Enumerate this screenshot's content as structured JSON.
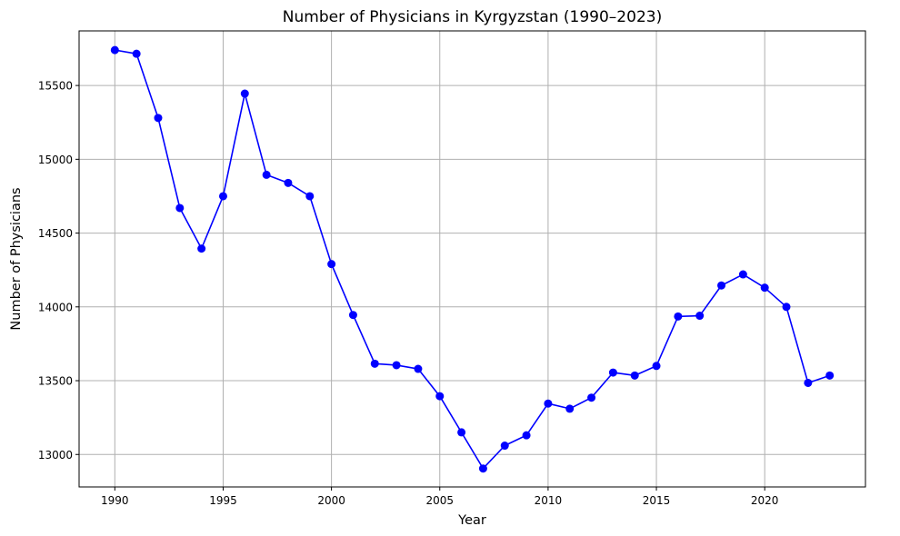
{
  "chart_data": {
    "type": "line",
    "title": "Number of Physicians in Kyrgyzstan (1990–2023)",
    "xlabel": "Year",
    "ylabel": "Number of Physicians",
    "x": [
      1990,
      1991,
      1992,
      1993,
      1994,
      1995,
      1996,
      1997,
      1998,
      1999,
      2000,
      2001,
      2002,
      2003,
      2004,
      2005,
      2006,
      2007,
      2008,
      2009,
      2010,
      2011,
      2012,
      2013,
      2014,
      2015,
      2016,
      2017,
      2018,
      2019,
      2020,
      2021,
      2022,
      2023
    ],
    "series": [
      {
        "values": [
          15740,
          15715,
          15280,
          14670,
          14395,
          14750,
          15445,
          14895,
          14840,
          14750,
          14290,
          13945,
          13615,
          13605,
          13580,
          13395,
          13150,
          12905,
          13060,
          13130,
          13345,
          13310,
          13385,
          13555,
          13535,
          13600,
          13935,
          13940,
          14145,
          14220,
          14130,
          14000,
          13485,
          13535
        ],
        "color": "#0000ff"
      }
    ],
    "xlim": [
      1988.35,
      1991.3
    ],
    "ylim": [
      12780,
      15870
    ],
    "x_ticks": [
      1990,
      1995,
      2000,
      2005,
      2010,
      2015,
      2020
    ],
    "y_ticks": [
      13000,
      13500,
      14000,
      14500,
      15000,
      15500
    ],
    "grid": true,
    "grid_color": "#b0b0b0"
  }
}
